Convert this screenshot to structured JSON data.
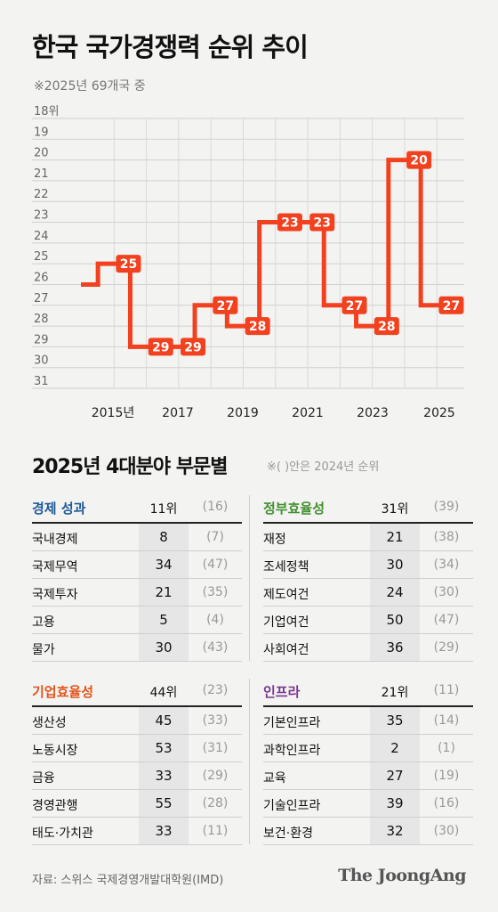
{
  "title": "한국 국가경쟁력 순위 추이",
  "subtitle": "※2025년 69개국 중",
  "chart_data": {
    "type": "line",
    "step": true,
    "y_reversed": true,
    "ylim": [
      18,
      31
    ],
    "y_ticks": [
      "18위",
      "19",
      "20",
      "21",
      "22",
      "23",
      "24",
      "25",
      "26",
      "27",
      "28",
      "29",
      "30",
      "31"
    ],
    "x_ticks": [
      "2015년",
      "2017",
      "2019",
      "2021",
      "2023",
      "2025"
    ],
    "x": [
      2014,
      2015,
      2016,
      2017,
      2018,
      2019,
      2020,
      2021,
      2022,
      2023,
      2024,
      2025
    ],
    "values": [
      26,
      25,
      29,
      29,
      27,
      28,
      23,
      23,
      27,
      28,
      20,
      27
    ],
    "labels": [
      "",
      "25",
      "29",
      "29",
      "27",
      "28",
      "23",
      "23",
      "27",
      "28",
      "20",
      "27"
    ],
    "line_color": "#f2411e",
    "grid": true
  },
  "section": {
    "title": "2025년 4대분야 부문별",
    "note": "※( )안은 2024년 순위"
  },
  "panels": [
    {
      "name": "경제 성과",
      "color": "#1f5a98",
      "rank": "11위",
      "prev": "(16)",
      "rows": [
        {
          "name": "국내경제",
          "rank": "8",
          "prev": "(7)"
        },
        {
          "name": "국제무역",
          "rank": "34",
          "prev": "(47)"
        },
        {
          "name": "국제투자",
          "rank": "21",
          "prev": "(35)"
        },
        {
          "name": "고용",
          "rank": "5",
          "prev": "(4)"
        },
        {
          "name": "물가",
          "rank": "30",
          "prev": "(43)"
        }
      ]
    },
    {
      "name": "정부효율성",
      "color": "#3f8f2d",
      "rank": "31위",
      "prev": "(39)",
      "rows": [
        {
          "name": "재정",
          "rank": "21",
          "prev": "(38)"
        },
        {
          "name": "조세정책",
          "rank": "30",
          "prev": "(34)"
        },
        {
          "name": "제도여건",
          "rank": "24",
          "prev": "(30)"
        },
        {
          "name": "기업여건",
          "rank": "50",
          "prev": "(47)"
        },
        {
          "name": "사회여건",
          "rank": "36",
          "prev": "(29)"
        }
      ]
    },
    {
      "name": "기업효율성",
      "color": "#e2541c",
      "rank": "44위",
      "prev": "(23)",
      "rows": [
        {
          "name": "생산성",
          "rank": "45",
          "prev": "(33)"
        },
        {
          "name": "노동시장",
          "rank": "53",
          "prev": "(31)"
        },
        {
          "name": "금융",
          "rank": "33",
          "prev": "(29)"
        },
        {
          "name": "경영관행",
          "rank": "55",
          "prev": "(28)"
        },
        {
          "name": "태도·가치관",
          "rank": "33",
          "prev": "(11)"
        }
      ]
    },
    {
      "name": "인프라",
      "color": "#7a3590",
      "rank": "21위",
      "prev": "(11)",
      "rows": [
        {
          "name": "기본인프라",
          "rank": "35",
          "prev": "(14)"
        },
        {
          "name": "과학인프라",
          "rank": "2",
          "prev": "(1)"
        },
        {
          "name": "교육",
          "rank": "27",
          "prev": "(19)"
        },
        {
          "name": "기술인프라",
          "rank": "39",
          "prev": "(16)"
        },
        {
          "name": "보건·환경",
          "rank": "32",
          "prev": "(30)"
        }
      ]
    }
  ],
  "source": "자료: 스위스 국제경영개발대학원(IMD)",
  "logo": "The JoongAng"
}
